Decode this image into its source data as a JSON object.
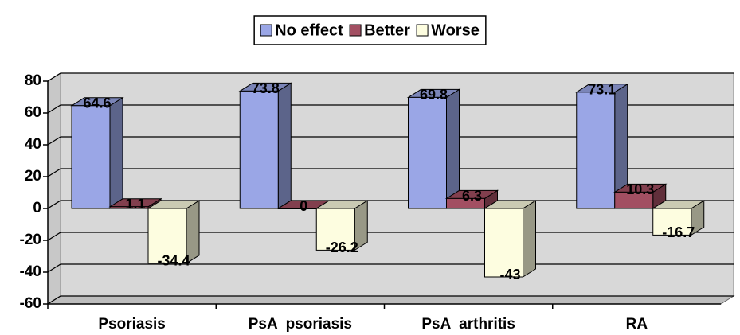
{
  "chart_data": {
    "type": "bar3d",
    "categories": [
      "Psoriasis",
      "PsA  psoriasis",
      "PsA  arthritis",
      "RA"
    ],
    "series": [
      {
        "name": "No effect",
        "color": "#9aa6e6",
        "values": [
          64.6,
          73.8,
          69.8,
          73.1
        ]
      },
      {
        "name": "Better",
        "color": "#a24f62",
        "values": [
          1.1,
          0,
          6.3,
          10.3
        ]
      },
      {
        "name": "Worse",
        "color": "#fdfde0",
        "values": [
          -34.4,
          -26.2,
          -43,
          -16.7
        ]
      }
    ],
    "ylim": [
      -60,
      80
    ],
    "yticks": [
      -60,
      -40,
      -20,
      0,
      20,
      40,
      60,
      80
    ],
    "grid": true,
    "legend": "top"
  }
}
